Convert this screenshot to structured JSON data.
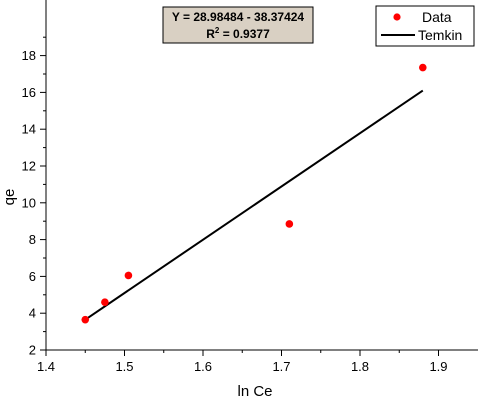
{
  "chart_data": {
    "type": "scatter",
    "xlabel": "ln Ce",
    "ylabel": "qe",
    "xlim": [
      1.4,
      1.95
    ],
    "ylim": [
      2,
      19
    ],
    "x_ticks": [
      1.4,
      1.5,
      1.6,
      1.7,
      1.8,
      1.9
    ],
    "x_tick_labels": [
      "1.4",
      "1.5",
      "1.6",
      "1.7",
      "1.8",
      "1.9"
    ],
    "y_ticks": [
      2,
      4,
      6,
      8,
      10,
      12,
      14,
      16,
      18
    ],
    "y_tick_labels": [
      "2",
      "4",
      "6",
      "8",
      "10",
      "12",
      "14",
      "16",
      "18"
    ],
    "grid": false,
    "legend_position": "top-right",
    "series": [
      {
        "name": "Data",
        "kind": "scatter",
        "color": "#ff0000",
        "x": [
          1.45,
          1.475,
          1.505,
          1.71,
          1.88
        ],
        "y": [
          3.65,
          4.6,
          6.05,
          8.85,
          17.35
        ]
      },
      {
        "name": "Temkin",
        "kind": "line",
        "color": "#000000",
        "x": [
          1.45,
          1.88
        ],
        "y": [
          3.65,
          16.1
        ]
      }
    ],
    "annotation": {
      "line1": "Y = 28.98484 - 38.37424",
      "r2_label": "R",
      "r2_sup": "2",
      "r2_value": " = 0.9377"
    }
  }
}
